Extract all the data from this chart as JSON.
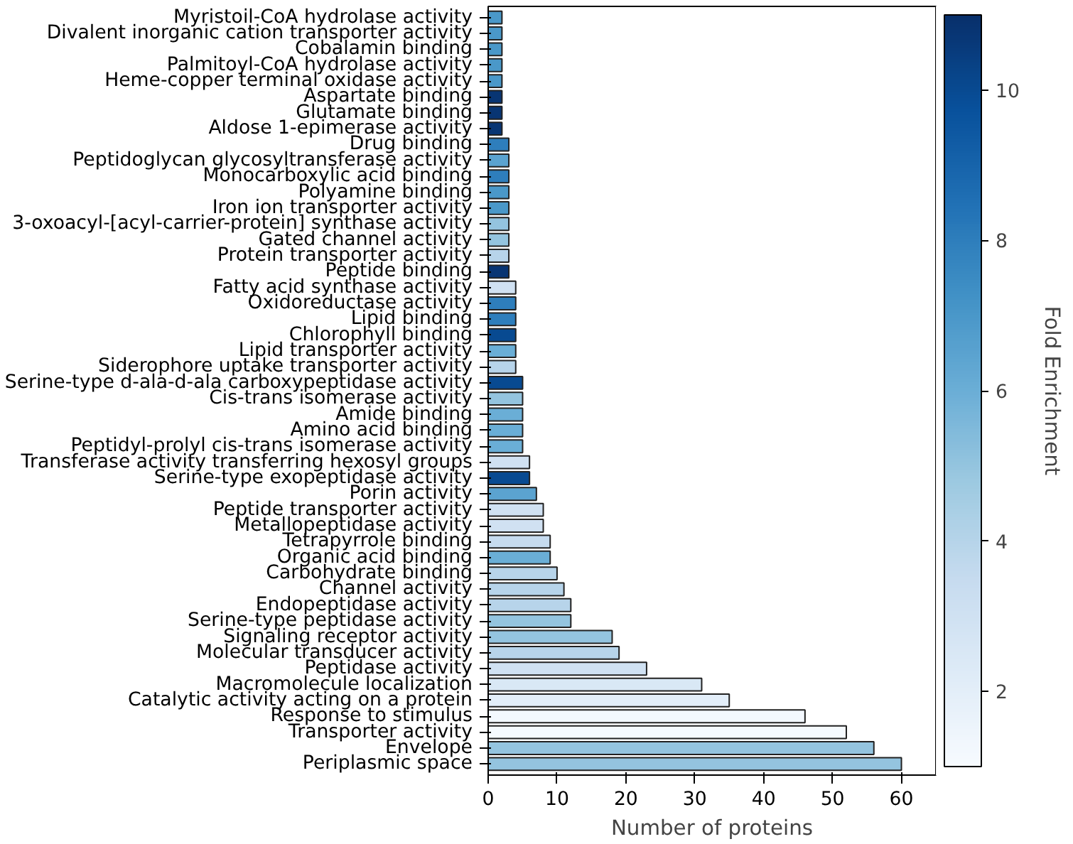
{
  "chart_data": {
    "type": "bar",
    "orientation": "horizontal",
    "xlabel": "Number of proteins",
    "clabel": "Fold Enrichment",
    "clim": [
      1,
      11
    ],
    "cticks": [
      2,
      4,
      6,
      8,
      10
    ],
    "xlim": [
      0,
      65
    ],
    "xticks": [
      0,
      10,
      20,
      30,
      40,
      50,
      60
    ],
    "categories": [
      "Myristoil-CoA hydrolase activity",
      "Divalent inorganic cation transporter activity",
      "Cobalamin binding",
      "Palmitoyl-CoA hydrolase activity",
      "Heme-copper terminal oxidase activity",
      "Aspartate binding",
      "Glutamate binding",
      "Aldose 1-epimerase activity",
      "Drug binding",
      "Peptidoglycan glycosyltransferase activity",
      "Monocarboxylic acid binding",
      "Polyamine binding",
      "Iron ion transporter activity",
      "3-oxoacyl-[acyl-carrier-protein] synthase activity",
      "Gated channel activity",
      "Protein transporter activity",
      "Peptide binding",
      "Fatty acid synthase activity",
      "Oxidoreductase activity",
      "Lipid binding",
      "Chlorophyll binding",
      "Lipid transporter activity",
      "Siderophore uptake transporter activity",
      "Serine-type d-ala-d-ala carboxypeptidase activity",
      "Cis-trans isomerase activity",
      "Amide binding",
      "Amino acid binding",
      "Peptidyl-prolyl cis-trans isomerase activity",
      "Transferase activity transferring hexosyl groups",
      "Serine-type exopeptidase activity",
      "Porin activity",
      "Peptide transporter activity",
      "Metallopeptidase activity",
      "Tetrapyrrole binding",
      "Organic acid binding",
      "Carbohydrate binding",
      "Channel activity",
      "Endopeptidase activity",
      "Serine-type peptidase activity",
      "Signaling receptor activity",
      "Molecular transducer activity",
      "Peptidase activity",
      "Macromolecule localization",
      "Catalytic activity acting on a protein",
      "Response to stimulus",
      "Transporter activity",
      "Envelope",
      "Periplasmic space"
    ],
    "values": [
      2,
      2,
      2,
      2,
      2,
      2,
      2,
      2,
      3,
      3,
      3,
      3,
      3,
      3,
      3,
      3,
      3,
      4,
      4,
      4,
      4,
      4,
      4,
      5,
      5,
      5,
      5,
      5,
      6,
      6,
      7,
      8,
      8,
      9,
      9,
      10,
      11,
      12,
      12,
      18,
      19,
      23,
      31,
      35,
      46,
      52,
      56,
      60
    ],
    "cvalues": [
      7,
      7,
      7,
      7,
      7,
      10.8,
      10.8,
      10.8,
      8,
      6.5,
      8,
      7,
      7,
      5,
      5,
      4,
      10.8,
      3,
      8,
      8,
      10,
      6,
      4,
      10,
      5,
      6,
      6,
      6,
      3,
      10,
      6.5,
      3,
      3,
      3.5,
      6,
      4,
      4,
      4,
      5,
      5,
      4,
      3,
      2.5,
      2,
      1.2,
      1.1,
      5,
      5
    ]
  }
}
